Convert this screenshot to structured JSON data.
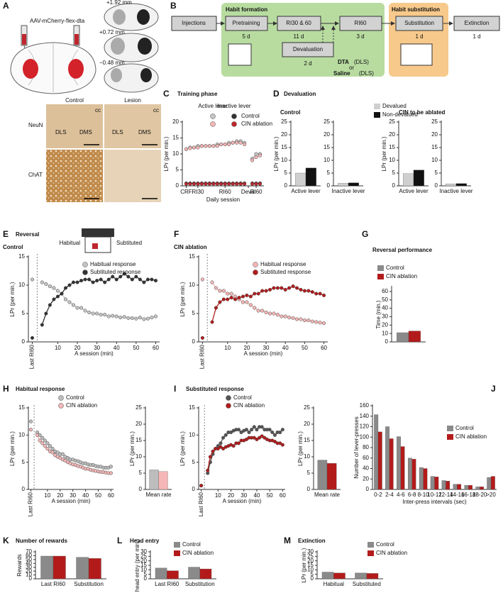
{
  "panel_labels": [
    "A",
    "B",
    "C",
    "D",
    "E",
    "F",
    "G",
    "H",
    "I",
    "J",
    "K",
    "L",
    "M"
  ],
  "panel_a": {
    "virus": "AAV-mCherry-flex-dta",
    "coordinates": [
      "+1.92 mm",
      "+0.72 mm",
      "−0.48 mm"
    ],
    "columns": [
      "Control",
      "Lesion"
    ],
    "rows": [
      "NeuN",
      "ChAT"
    ],
    "regions": [
      "DLS",
      "DMS"
    ],
    "landmark": "cc"
  },
  "panel_b": {
    "phases": [
      "Habit formation",
      "Habit substitution"
    ],
    "steps": [
      {
        "label": "Injections"
      },
      {
        "label": "Pretraining",
        "duration": "5 d"
      },
      {
        "label": "RI30 & 60",
        "duration": "11 d"
      },
      {
        "label": "RI60",
        "duration": "3 d"
      },
      {
        "label": "Devaluation",
        "duration": "2 d"
      },
      {
        "label": "Substitution",
        "duration": "1 d"
      },
      {
        "label": "Extinction",
        "duration": "1 d"
      }
    ],
    "treatment": [
      "DTA",
      "(DLS)",
      "or",
      "Saline",
      "(DLS)"
    ]
  },
  "panel_e_inset": [
    "Habitual",
    "Subtituted"
  ],
  "chart_data": [
    {
      "type": "line",
      "title": "Training phase",
      "xlabel": "Daily session",
      "ylabel": "LPr (per min.)",
      "lever_labels": [
        "Active lever",
        "Inactive lever"
      ],
      "x": [
        1,
        2,
        3,
        4,
        5,
        6,
        7,
        8,
        9,
        10,
        11,
        12,
        13,
        14,
        15,
        16,
        17,
        18,
        19,
        20
      ],
      "xlim": [
        0,
        21
      ],
      "xticks": [
        {
          "value": 1,
          "label": "CRF"
        },
        {
          "value": 4,
          "label": "RI30"
        },
        {
          "value": 11,
          "label": "RI60"
        },
        {
          "value": 17,
          "label": "Deval"
        },
        {
          "value": 19,
          "label": "RI60"
        }
      ],
      "ylim": [
        0,
        20
      ],
      "yticks": [
        0,
        5,
        10,
        15,
        20
      ],
      "series": [
        {
          "name": "Control",
          "colors": [
            "#c4c4c4",
            "#333333"
          ],
          "values": [
            11.5,
            12,
            12,
            12.5,
            12.5,
            12.5,
            12.5,
            12.5,
            13,
            13,
            13,
            13.5,
            13.5,
            14,
            14,
            13.5,
            null,
            8.5,
            10,
            10
          ],
          "inactive": [
            0.8,
            0.8,
            0.8,
            0.8,
            0.8,
            0.8,
            0.8,
            0.8,
            0.8,
            0.8,
            0.8,
            0.8,
            0.8,
            0.8,
            0.8,
            0.8,
            null,
            0.8,
            0.8,
            0.8
          ]
        },
        {
          "name": "CIN ablation",
          "colors": [
            "#f4b6b6",
            "#c0262d"
          ],
          "values": [
            11.5,
            11.8,
            12,
            12,
            12.5,
            12.5,
            12.5,
            12.5,
            12.5,
            13,
            13,
            13,
            13.5,
            13.5,
            13.5,
            13,
            null,
            8,
            9,
            9.5
          ],
          "inactive": [
            0.6,
            0.6,
            0.6,
            0.6,
            0.6,
            0.6,
            0.6,
            0.6,
            0.6,
            0.6,
            0.6,
            0.6,
            0.6,
            0.6,
            0.6,
            0.6,
            null,
            0.6,
            0.6,
            0.6
          ]
        }
      ]
    },
    {
      "type": "bar",
      "title": "Devaluation",
      "subtitles": [
        "Control",
        "CIN to be ablated"
      ],
      "ylabel": "LPr (per min.)",
      "categories": [
        "Active lever",
        "Inactive lever",
        "Active lever",
        "Inactive lever"
      ],
      "ylim": [
        0,
        25
      ],
      "yticks": [
        0,
        5,
        10,
        15,
        20,
        25
      ],
      "series": [
        {
          "name": "Devalued",
          "color": "#cfcfcf",
          "values": [
            5,
            1,
            4.8,
            0.8
          ]
        },
        {
          "name": "Non-devalued",
          "color": "#111111",
          "values": [
            7,
            1.2,
            6.2,
            0.9
          ]
        }
      ]
    },
    {
      "type": "line",
      "title": "Reversal",
      "subtitle": "Control",
      "xlabel": "A session (min)",
      "ylabel": "LPr (per min.)",
      "baseline_break": true,
      "x": [
        -3,
        2,
        4,
        6,
        8,
        10,
        12,
        14,
        16,
        18,
        20,
        22,
        24,
        26,
        28,
        30,
        32,
        34,
        36,
        38,
        40,
        42,
        44,
        46,
        48,
        50,
        52,
        54,
        56,
        58,
        60
      ],
      "xlim": [
        -5,
        62
      ],
      "xticks": [
        {
          "value": -3,
          "label": "Last RI60"
        },
        10,
        20,
        30,
        40,
        50,
        60
      ],
      "ylim": [
        0,
        15
      ],
      "yticks": [
        0,
        5,
        10,
        15
      ],
      "series": [
        {
          "name": "Habitual response",
          "color": "#c4c4c4",
          "values": [
            11,
            10.5,
            10.2,
            9.8,
            9.5,
            9,
            8.5,
            7.5,
            7,
            6.5,
            6,
            6,
            5.5,
            5.2,
            5,
            5,
            4.8,
            4.8,
            4.5,
            4.6,
            4.5,
            4.3,
            4.4,
            4.2,
            4.2,
            4.1,
            4.3,
            4,
            4.1,
            4.3,
            4.5
          ]
        },
        {
          "name": "Subtituted response",
          "color": "#333333",
          "values": [
            0.7,
            3,
            5,
            6.5,
            7.5,
            8,
            8.5,
            9.5,
            10,
            10.5,
            10.5,
            10.8,
            11,
            11,
            10.5,
            10.8,
            11,
            10.5,
            11,
            11.5,
            11,
            11.5,
            12,
            11.5,
            11,
            11.5,
            11,
            10.5,
            11,
            11,
            10.8
          ]
        }
      ]
    },
    {
      "type": "line",
      "title": "CIN ablation",
      "xlabel": "A session (min)",
      "ylabel": "LPr (per min.)",
      "baseline_break": true,
      "x": [
        -3,
        2,
        4,
        6,
        8,
        10,
        12,
        14,
        16,
        18,
        20,
        22,
        24,
        26,
        28,
        30,
        32,
        34,
        36,
        38,
        40,
        42,
        44,
        46,
        48,
        50,
        52,
        54,
        56,
        58,
        60
      ],
      "xlim": [
        -5,
        62
      ],
      "xticks": [
        {
          "value": -3,
          "label": "Last RI60"
        },
        10,
        20,
        30,
        40,
        50,
        60
      ],
      "ylim": [
        0,
        15
      ],
      "yticks": [
        0,
        5,
        10,
        15
      ],
      "series": [
        {
          "name": "Habitual response",
          "color": "#f4b6b6",
          "values": [
            11,
            10.5,
            9.5,
            9,
            9,
            8.5,
            8.5,
            8,
            7.5,
            7,
            7,
            6.5,
            6,
            5.5,
            5.5,
            5.2,
            5,
            5,
            4.8,
            4.5,
            4.5,
            4.3,
            4.2,
            4,
            4,
            3.8,
            3.8,
            3.6,
            3.5,
            3.4,
            3.3
          ]
        },
        {
          "name": "Subtituted response",
          "color": "#b31b1b",
          "values": [
            0.7,
            3.5,
            6,
            7,
            7.5,
            7.5,
            7.8,
            7.5,
            7.8,
            8,
            8.2,
            8,
            8.5,
            8.5,
            9,
            9,
            9.2,
            9.5,
            9.5,
            9.5,
            9.2,
            9.5,
            9.8,
            9.5,
            9.2,
            9,
            9,
            8.8,
            8.5,
            8.5,
            8.2
          ]
        }
      ]
    },
    {
      "type": "bar",
      "title": "Reversal performance",
      "ylabel": "Time (min.)",
      "categories": [
        null
      ],
      "ylim": [
        0,
        65
      ],
      "yticks": [
        0,
        10,
        20,
        30,
        40,
        50,
        60
      ],
      "series": [
        {
          "name": "Control",
          "color": "#8a8a8a",
          "values": [
            11
          ]
        },
        {
          "name": "CIN ablation",
          "color": "#b31b1b",
          "values": [
            13
          ]
        }
      ]
    },
    {
      "type": "line",
      "title": "Habitual response",
      "xlabel": "A session (min)",
      "ylabel": "LPr (per min.)",
      "baseline_break": true,
      "x": [
        -3,
        2,
        4,
        6,
        8,
        10,
        12,
        14,
        16,
        18,
        20,
        22,
        24,
        26,
        28,
        30,
        32,
        34,
        36,
        38,
        40,
        42,
        44,
        46,
        48,
        50,
        52,
        54,
        56,
        58,
        60
      ],
      "xlim": [
        -5,
        62
      ],
      "xticks": [
        {
          "value": -3,
          "label": "Last RI60"
        },
        10,
        20,
        30,
        40,
        50,
        60
      ],
      "ylim": [
        0,
        15
      ],
      "yticks": [
        0,
        5,
        10,
        15
      ],
      "series": [
        {
          "name": "Control",
          "color": "#bdbdbd",
          "values": [
            12.5,
            10.5,
            10,
            9.5,
            9,
            8.5,
            8,
            7.5,
            7,
            6.8,
            6.5,
            6.5,
            6,
            5.8,
            5.5,
            5.5,
            5.3,
            5.2,
            5,
            4.8,
            4.8,
            4.6,
            4.5,
            4.5,
            4.3,
            4.2,
            4.2,
            4,
            4,
            4,
            4.2
          ]
        },
        {
          "name": "CIN ablation",
          "color": "#f4b6b6",
          "values": [
            11,
            10,
            9,
            8.5,
            8,
            7.5,
            7,
            6.8,
            6.3,
            6,
            5.8,
            5.5,
            5.3,
            5,
            4.8,
            4.6,
            4.5,
            4.3,
            4.2,
            4,
            3.8,
            3.8,
            3.6,
            3.5,
            3.4,
            3.3,
            3.2,
            3.2,
            3.1,
            3,
            3
          ]
        }
      ]
    },
    {
      "type": "bar",
      "ylabel": "LPr (per min.)",
      "categories": [
        "Mean rate"
      ],
      "ylim": [
        0,
        25
      ],
      "yticks": [
        0,
        5,
        10,
        15,
        20,
        25
      ],
      "series": [
        {
          "color": "#bdbdbd",
          "values": [
            6
          ]
        },
        {
          "color": "#f4b6b6",
          "values": [
            5.5
          ]
        }
      ]
    },
    {
      "type": "line",
      "title": "Substituted response",
      "xlabel": "A session (min)",
      "ylabel": "LPr (per min.)",
      "baseline_break": true,
      "x": [
        -3,
        2,
        4,
        6,
        8,
        10,
        12,
        14,
        16,
        18,
        20,
        22,
        24,
        26,
        28,
        30,
        32,
        34,
        36,
        38,
        40,
        42,
        44,
        46,
        48,
        50,
        52,
        54,
        56,
        58,
        60
      ],
      "xlim": [
        -5,
        62
      ],
      "xticks": [
        {
          "value": -3,
          "label": "Last RI60"
        },
        10,
        20,
        30,
        40,
        50,
        60
      ],
      "ylim": [
        0,
        15
      ],
      "yticks": [
        0,
        5,
        10,
        15
      ],
      "series": [
        {
          "name": "Control",
          "color": "#555555",
          "values": [
            0.7,
            3,
            5,
            6.5,
            7.5,
            8,
            8.5,
            9.5,
            10,
            10.5,
            10.5,
            10.8,
            11,
            11,
            10.5,
            10.8,
            11,
            10.5,
            11,
            11.5,
            11,
            11.5,
            11.5,
            11,
            11,
            11,
            10.5,
            10,
            10.5,
            10.5,
            11
          ]
        },
        {
          "name": "CIN ablation",
          "color": "#b31b1b",
          "values": [
            0.7,
            3.5,
            6,
            7,
            7.5,
            7.5,
            7.8,
            7.5,
            7.8,
            8,
            8.2,
            8,
            8.5,
            8.5,
            9,
            9,
            9.2,
            9.5,
            9.5,
            9.5,
            9.2,
            9.5,
            9.8,
            9.5,
            9.2,
            9,
            9,
            8.8,
            8.5,
            8.5,
            8.2
          ]
        }
      ]
    },
    {
      "type": "bar",
      "ylabel": "LPr (per min.)",
      "categories": [
        "Mean rate"
      ],
      "ylim": [
        0,
        25
      ],
      "yticks": [
        0,
        5,
        10,
        15,
        20,
        25
      ],
      "series": [
        {
          "color": "#8a8a8a",
          "values": [
            9
          ]
        },
        {
          "color": "#b31b1b",
          "values": [
            8
          ]
        }
      ]
    },
    {
      "type": "bar",
      "xlabel": "Inter-press intervals (sec)",
      "ylabel": "Number of lever-presses",
      "categories": [
        "0-2",
        "2-4",
        "4-6",
        "6-8",
        "8-10",
        "10-12",
        "12-14",
        "14-16",
        "16-18",
        "18-20",
        ">20"
      ],
      "ylim": [
        0,
        160
      ],
      "yticks": [
        0,
        20,
        40,
        60,
        80,
        100,
        120,
        140,
        160
      ],
      "series": [
        {
          "name": "Control",
          "color": "#8a8a8a",
          "values": [
            143,
            120,
            101,
            60,
            42,
            25,
            17,
            10,
            8,
            5,
            23
          ]
        },
        {
          "name": "CIN ablation",
          "color": "#b31b1b",
          "values": [
            110,
            97,
            82,
            58,
            40,
            24,
            16,
            10,
            8,
            5,
            25
          ]
        }
      ]
    },
    {
      "type": "bar",
      "title": "Number of rewards",
      "ylabel": "Rewards",
      "categories": [
        "Last RI60",
        "Substitution"
      ],
      "ylim": [
        0,
        70
      ],
      "yticks": [
        0,
        10,
        20,
        30,
        40,
        50,
        60,
        70
      ],
      "series": [
        {
          "color": "#8a8a8a",
          "values": [
            59,
            56
          ]
        },
        {
          "color": "#b31b1b",
          "values": [
            59,
            53
          ]
        }
      ]
    },
    {
      "type": "bar",
      "title": "Head entry",
      "ylabel": "head entry (per min.)",
      "categories": [
        "Last RI60",
        "Substitution"
      ],
      "ylim": [
        0,
        30
      ],
      "yticks": [
        0,
        5,
        10,
        15,
        20,
        25,
        30
      ],
      "series": [
        {
          "name": "Control",
          "color": "#8a8a8a",
          "values": [
            12,
            13
          ]
        },
        {
          "name": "CIN ablation",
          "color": "#b31b1b",
          "values": [
            9,
            11
          ]
        }
      ]
    },
    {
      "type": "bar",
      "title": "Extinction",
      "ylabel": "LPr (per min.)",
      "categories": [
        "Habitual",
        "Substituted"
      ],
      "ylim": [
        0,
        30
      ],
      "yticks": [
        0,
        5,
        10,
        15,
        20,
        25,
        30
      ],
      "series": [
        {
          "name": "Control",
          "color": "#8a8a8a",
          "values": [
            7.5,
            6.5
          ]
        },
        {
          "name": "CIN ablation",
          "color": "#b31b1b",
          "values": [
            6.5,
            6
          ]
        }
      ]
    }
  ]
}
